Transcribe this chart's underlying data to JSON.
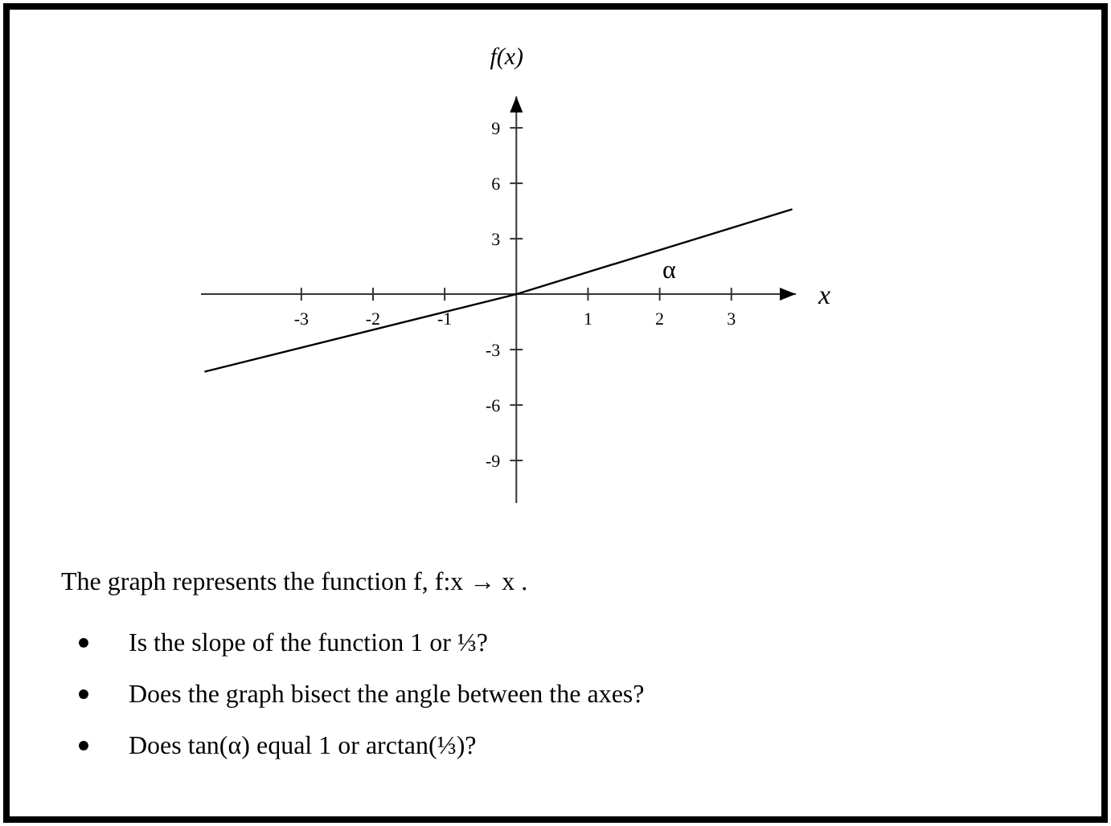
{
  "chart_data": {
    "type": "line",
    "xlabel": "x",
    "ylabel": "f(x)",
    "x": [
      -4.35,
      0,
      3.85
    ],
    "series": [
      {
        "color": "#000000",
        "values": [
          -4.2,
          0,
          4.6
        ]
      }
    ],
    "xlim": [
      -4.4,
      3.9
    ],
    "ylim": [
      -11.3,
      10.7
    ],
    "xticks": [
      -3,
      -2,
      -1,
      1,
      2,
      3
    ],
    "yticks": [
      -9,
      -6,
      -3,
      3,
      6,
      9
    ],
    "grid": false,
    "marker": "none",
    "line_style": "solid",
    "annotations": [
      "α",
      "The graph represents the function f,  f:x → x .",
      "Is the slope of the function 1 or ⅓?",
      "Does the graph bisect the angle between the axes?",
      "Does tan(α) equal 1 or arctan(⅓)?"
    ]
  }
}
